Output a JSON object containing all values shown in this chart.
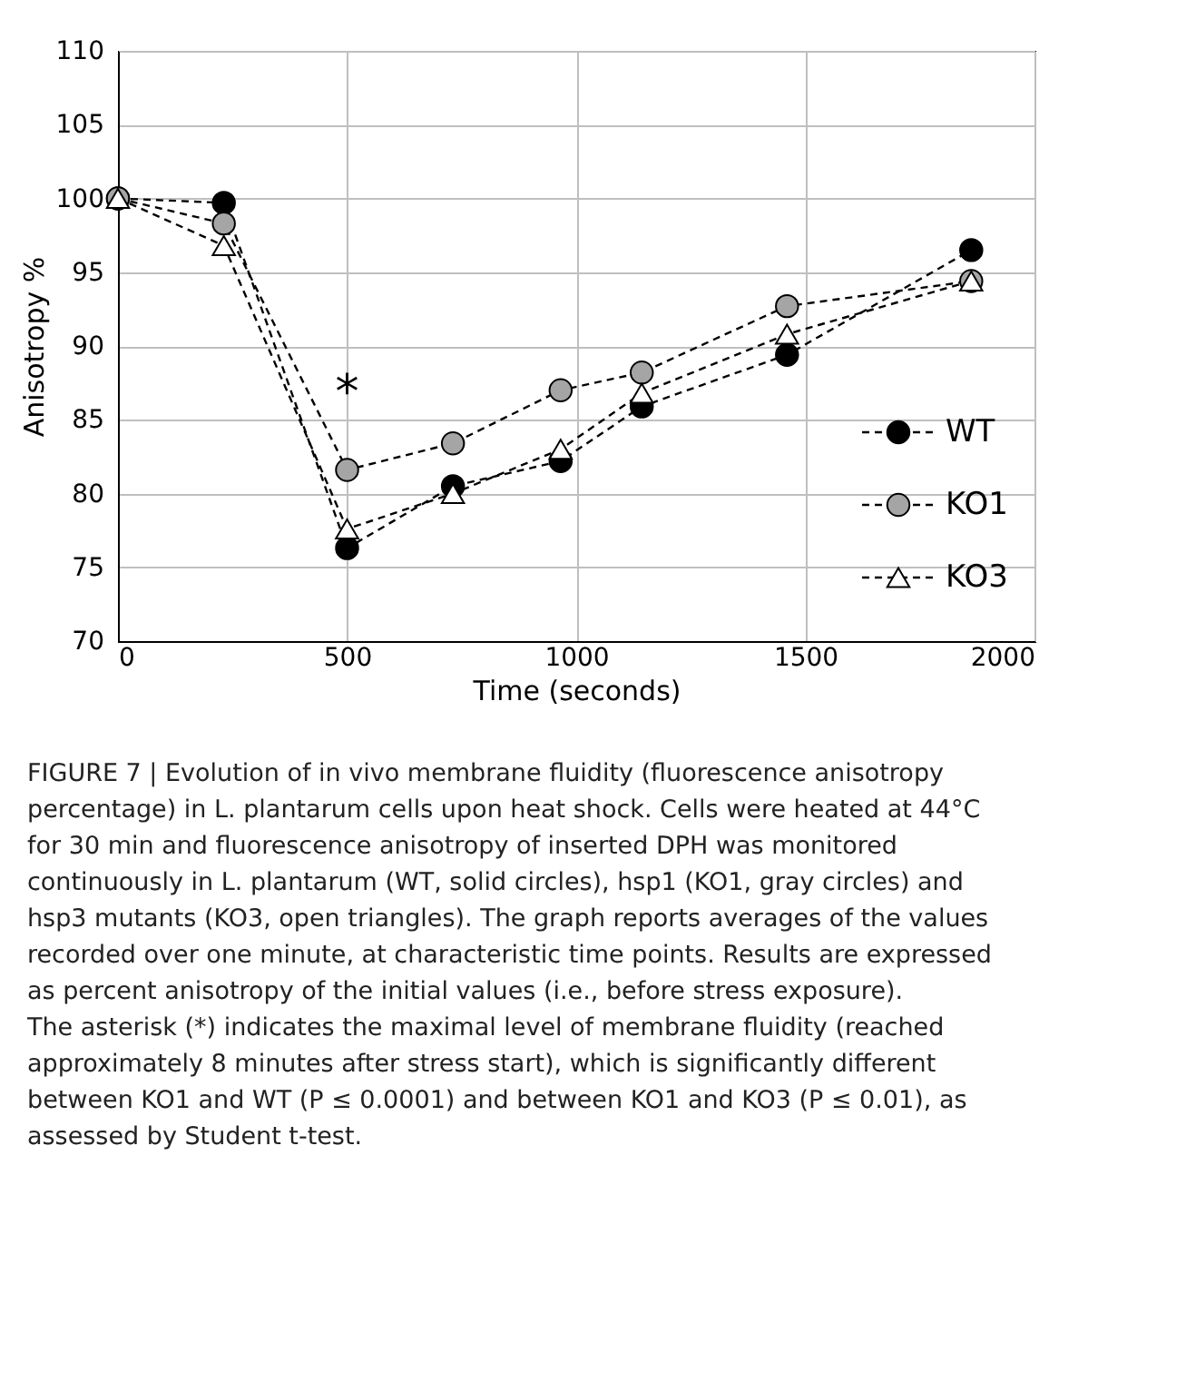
{
  "chart_data": {
    "type": "line",
    "xlabel": "Time (seconds)",
    "ylabel": "Anisotropy %",
    "x": [
      0,
      231,
      500,
      731,
      966,
      1143,
      1460,
      1862
    ],
    "series": [
      {
        "name": "WT",
        "color": "#000000",
        "marker": "circle",
        "values": [
          100,
          99.7,
          76.3,
          80.5,
          82.2,
          85.9,
          89.4,
          96.5
        ]
      },
      {
        "name": "KO1",
        "color": "#a5a5a5",
        "marker": "circle",
        "values": [
          100,
          98.3,
          81.6,
          83.4,
          87.0,
          88.2,
          92.7,
          94.4
        ]
      },
      {
        "name": "KO3",
        "color": "#ffffff",
        "marker": "triangle",
        "values": [
          100,
          96.8,
          77.6,
          80.0,
          83.0,
          86.8,
          90.8,
          94.4
        ]
      }
    ],
    "xlim": [
      0,
      2000
    ],
    "xticks": [
      0,
      500,
      1000,
      1500,
      2000
    ],
    "ylim": [
      70,
      110
    ],
    "yticks": [
      70,
      75,
      80,
      85,
      90,
      95,
      100,
      105,
      110
    ],
    "grid": true,
    "legend": "bottom right",
    "line_style": "dashed",
    "annotations": [
      "*",
      "FIGURE 7 | Evolution of in vivo membrane fluidity (fluorescence anisotropy percentage) in L. plantarum cells upon heat shock. Cells were heated at 44°C for 30 min and fluorescence anisotropy of inserted DPH was monitored continuously in L. plantarum (WT, solid circles), hsp1 (KO1, gray circles) and hsp3 mutants (KO3, open triangles). The graph reports averages of the values recorded over one minute, at characteristic time points. Results are expressed as percent anisotropy of the initial values (i.e., before stress exposure). The asterisk (*) indicates the maximal level of membrane fluidity (reached approximately 8 minutes after stress start), which is significantly different between KO1 and WT (P ≤ 0.0001) and between KO1 and KO3 (P ≤ 0.01), as assessed by Student t-test."
    ]
  }
}
